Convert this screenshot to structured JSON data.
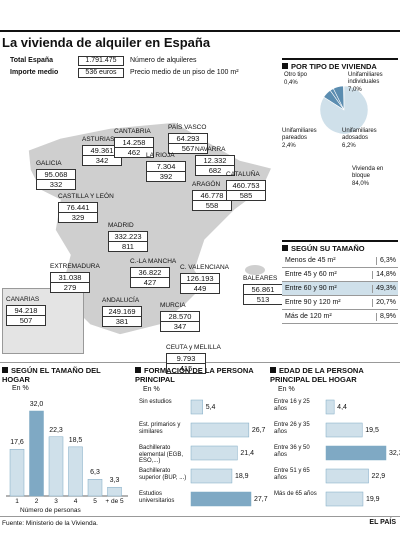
{
  "title": "La vivienda de alquiler en España",
  "summary": [
    {
      "label": "Total España",
      "value": "1.791.475",
      "note": "Número de alquileres"
    },
    {
      "label": "Importe medio",
      "value": "536 euros",
      "note": "Precio medio de un piso de 100 m²"
    }
  ],
  "regions": [
    {
      "name": "GALICIA",
      "count": "95.068",
      "price": "332"
    },
    {
      "name": "ASTURIAS",
      "count": "49.361",
      "price": "342"
    },
    {
      "name": "CANTABRIA",
      "count": "14.258",
      "price": "462"
    },
    {
      "name": "PAÍS VASCO",
      "count": "64.293",
      "price": "567"
    },
    {
      "name": "NAVARRA",
      "count": "12.332",
      "price": "682"
    },
    {
      "name": "LA RIOJA",
      "count": "7.304",
      "price": "392"
    },
    {
      "name": "CASTILLA Y LEÓN",
      "count": "76.441",
      "price": "329"
    },
    {
      "name": "ARAGÓN",
      "count": "46.778",
      "price": "558"
    },
    {
      "name": "CATALUÑA",
      "count": "460.753",
      "price": "585"
    },
    {
      "name": "MADRID",
      "count": "332.223",
      "price": "811"
    },
    {
      "name": "EXTREMADURA",
      "count": "31.038",
      "price": "279"
    },
    {
      "name": "C.-LA MANCHA",
      "count": "36.822",
      "price": "427"
    },
    {
      "name": "C. VALENCIANA",
      "count": "126.193",
      "price": "449"
    },
    {
      "name": "BALEARES",
      "count": "56.861",
      "price": "513"
    },
    {
      "name": "ANDALUCÍA",
      "count": "249.169",
      "price": "381"
    },
    {
      "name": "MURCIA",
      "count": "28.570",
      "price": "347"
    },
    {
      "name": "CANARIAS",
      "count": "94.218",
      "price": "507"
    },
    {
      "name": "CEUTA y MELILLA",
      "count": "9.793",
      "price": "415"
    }
  ],
  "size_table": {
    "title": "SEGÚN SU TAMAÑO",
    "highlight": 2,
    "rows": [
      [
        "Menos de 45 m²",
        "6,3%"
      ],
      [
        "Entre 45 y 60 m²",
        "14,8%"
      ],
      [
        "Entre 60 y 90 m²",
        "49,3%"
      ],
      [
        "Entre 90 y 120 m²",
        "20,7%"
      ],
      [
        "Más de 120 m²",
        "8,9%"
      ]
    ]
  },
  "chart_data": [
    {
      "type": "pie",
      "title": "POR TIPO DE VIVIENDA",
      "categories": [
        "Otro tipo",
        "Unifamiliares individuales",
        "Unifamiliares pareados",
        "Unifamiliares adosados",
        "Vivienda en bloque"
      ],
      "values": [
        0.4,
        7.0,
        2.4,
        6.2,
        84.0
      ],
      "value_labels": [
        "0,4%",
        "7,0%",
        "2,4%",
        "6,2%",
        "84,0%"
      ],
      "colors": [
        "#5b8db0",
        "#5b8db0",
        "#5b8db0",
        "#5b8db0",
        "#cfe0ea"
      ]
    },
    {
      "type": "bar",
      "title": "SEGÚN EL TAMAÑO DEL HOGAR",
      "subtitle": "En %",
      "x_label": "Número de personas",
      "categories": [
        "1",
        "2",
        "3",
        "4",
        "5",
        "+ de 5"
      ],
      "values": [
        17.6,
        32.0,
        22.3,
        18.5,
        6.3,
        3.3
      ],
      "value_labels": [
        "17,6",
        "32,0",
        "22,3",
        "18,5",
        "6,3",
        "3,3"
      ],
      "colors": [
        "#cfe0ea",
        "#7fa9c4",
        "#cfe0ea",
        "#cfe0ea",
        "#cfe0ea",
        "#cfe0ea"
      ]
    },
    {
      "type": "hbar",
      "title": "FORMACIÓN DE LA PERSONA PRINCIPAL",
      "subtitle": "En %",
      "categories": [
        "Sin estudios",
        "Est. primarios y similares",
        "Bachillerato elemental (EGB, ESO,...)",
        "Bachillerato superior (BUP, ...)",
        "Estudios universitarios"
      ],
      "values": [
        5.4,
        26.7,
        21.4,
        18.9,
        27.7
      ],
      "value_labels": [
        "5,4",
        "26,7",
        "21,4",
        "18,9",
        "27,7"
      ],
      "colors": [
        "#cfe0ea",
        "#cfe0ea",
        "#cfe0ea",
        "#cfe0ea",
        "#7fa9c4"
      ]
    },
    {
      "type": "hbar",
      "title": "EDAD DE LA PERSONA PRINCIPAL DEL HOGAR",
      "subtitle": "En %",
      "categories": [
        "Entre 16 y 25 años",
        "Entre 26 y 35 años",
        "Entre 36 y 50 años",
        "Entre 51 y 65 años",
        "Más de 65 años"
      ],
      "values": [
        4.4,
        19.5,
        32.3,
        22.9,
        19.9
      ],
      "value_labels": [
        "4,4",
        "19,5",
        "32,3",
        "22,9",
        "19,9"
      ],
      "colors": [
        "#cfe0ea",
        "#cfe0ea",
        "#7fa9c4",
        "#cfe0ea",
        "#cfe0ea"
      ]
    }
  ],
  "source": "Fuente: Ministerio de la Vivienda.",
  "brand": "EL PAÍS"
}
